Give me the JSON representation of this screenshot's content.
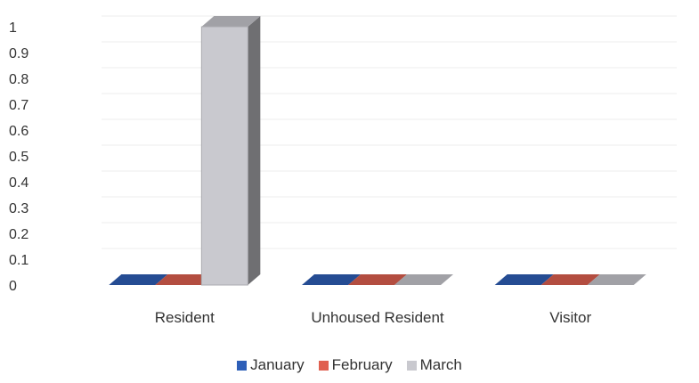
{
  "chart_data": {
    "type": "bar",
    "style": "3d-clustered-column",
    "categories": [
      "Resident",
      "Unhoused Resident",
      "Visitor"
    ],
    "series": [
      {
        "name": "January",
        "color": "#2e5fb8",
        "values": [
          0,
          0,
          0
        ]
      },
      {
        "name": "February",
        "color": "#e06050",
        "values": [
          0,
          0,
          0
        ]
      },
      {
        "name": "March",
        "color": "#c9c9cf",
        "values": [
          1,
          0,
          0
        ]
      }
    ],
    "yticks": [
      "0",
      "0.1",
      "0.2",
      "0.3",
      "0.4",
      "0.5",
      "0.6",
      "0.7",
      "0.8",
      "0.9",
      "1"
    ],
    "ylim": [
      0,
      1
    ],
    "grid": true,
    "legend_position": "bottom",
    "title": "",
    "xlabel": "",
    "ylabel": ""
  }
}
